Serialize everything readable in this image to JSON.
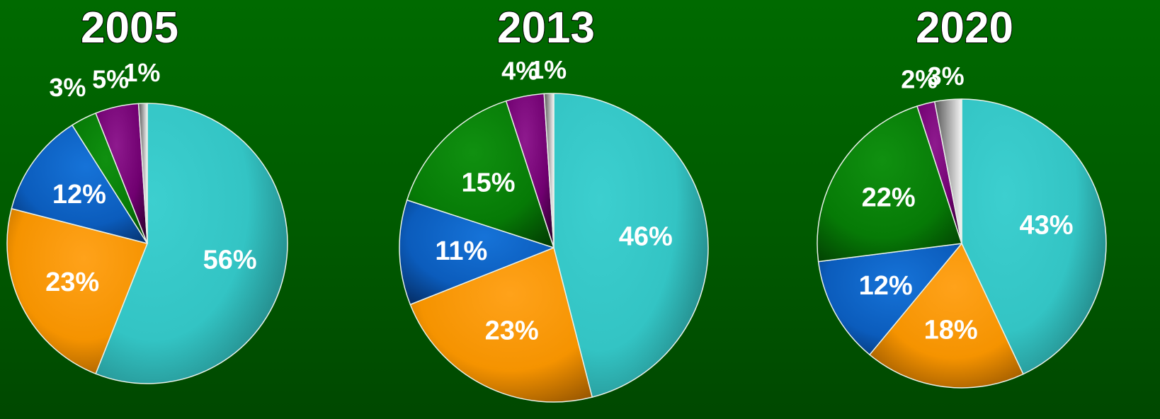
{
  "chart_data": [
    {
      "type": "pie",
      "title": "2005",
      "slices": [
        {
          "label": "56%",
          "value": 56,
          "color": "#33c9c9"
        },
        {
          "label": "23%",
          "value": 23,
          "color": "#ff9900"
        },
        {
          "label": "12%",
          "value": 12,
          "color": "#0b63c8"
        },
        {
          "label": "3%",
          "value": 3,
          "color": "#0b8a0b"
        },
        {
          "label": "5%",
          "value": 5,
          "color": "#800080"
        },
        {
          "label": "1%",
          "value": 1,
          "color": "#d8d8d8"
        }
      ]
    },
    {
      "type": "pie",
      "title": "2013",
      "slices": [
        {
          "label": "46%",
          "value": 46,
          "color": "#33c9c9"
        },
        {
          "label": "23%",
          "value": 23,
          "color": "#ff9900"
        },
        {
          "label": "11%",
          "value": 11,
          "color": "#0b63c8"
        },
        {
          "label": "15%",
          "value": 15,
          "color": "#0b8a0b"
        },
        {
          "label": "4%",
          "value": 4,
          "color": "#800080"
        },
        {
          "label": "1%",
          "value": 1,
          "color": "#d8d8d8"
        }
      ]
    },
    {
      "type": "pie",
      "title": "2020",
      "slices": [
        {
          "label": "43%",
          "value": 43,
          "color": "#33c9c9"
        },
        {
          "label": "18%",
          "value": 18,
          "color": "#ff9900"
        },
        {
          "label": "12%",
          "value": 12,
          "color": "#0b63c8"
        },
        {
          "label": "22%",
          "value": 22,
          "color": "#0b8a0b"
        },
        {
          "label": "2%",
          "value": 2,
          "color": "#800080"
        },
        {
          "label": "3%",
          "value": 3,
          "color": "#d8d8d8"
        }
      ]
    }
  ]
}
